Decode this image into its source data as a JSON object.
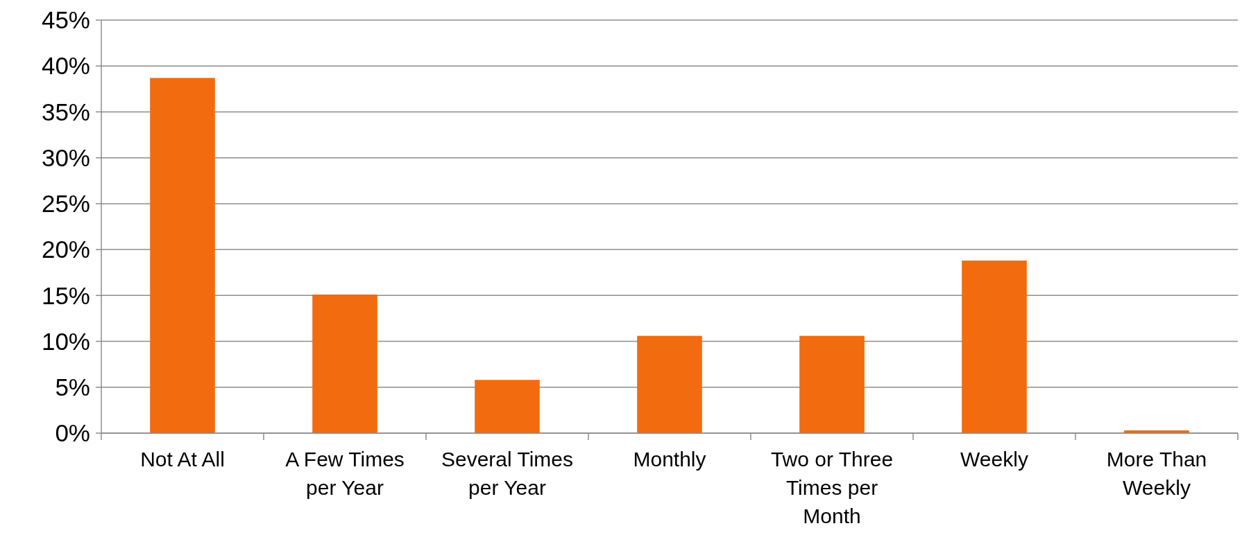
{
  "chart_data": {
    "type": "bar",
    "categories": [
      "Not At All",
      "A Few Times per Year",
      "Several Times per Year",
      "Monthly",
      "Two or Three Times per Month",
      "Weekly",
      "More Than Weekly"
    ],
    "values": [
      38.7,
      15.1,
      5.8,
      10.6,
      10.6,
      18.8,
      0.3
    ],
    "color": "#f26b0f",
    "ylim": [
      0,
      45
    ],
    "yticks": [
      {
        "value": 0,
        "label": "0%"
      },
      {
        "value": 5,
        "label": "5%"
      },
      {
        "value": 10,
        "label": "10%"
      },
      {
        "value": 15,
        "label": "15%"
      },
      {
        "value": 20,
        "label": "20%"
      },
      {
        "value": 25,
        "label": "25%"
      },
      {
        "value": 30,
        "label": "30%"
      },
      {
        "value": 35,
        "label": "35%"
      },
      {
        "value": 40,
        "label": "40%"
      },
      {
        "value": 45,
        "label": "45%"
      }
    ],
    "grid": "y"
  }
}
